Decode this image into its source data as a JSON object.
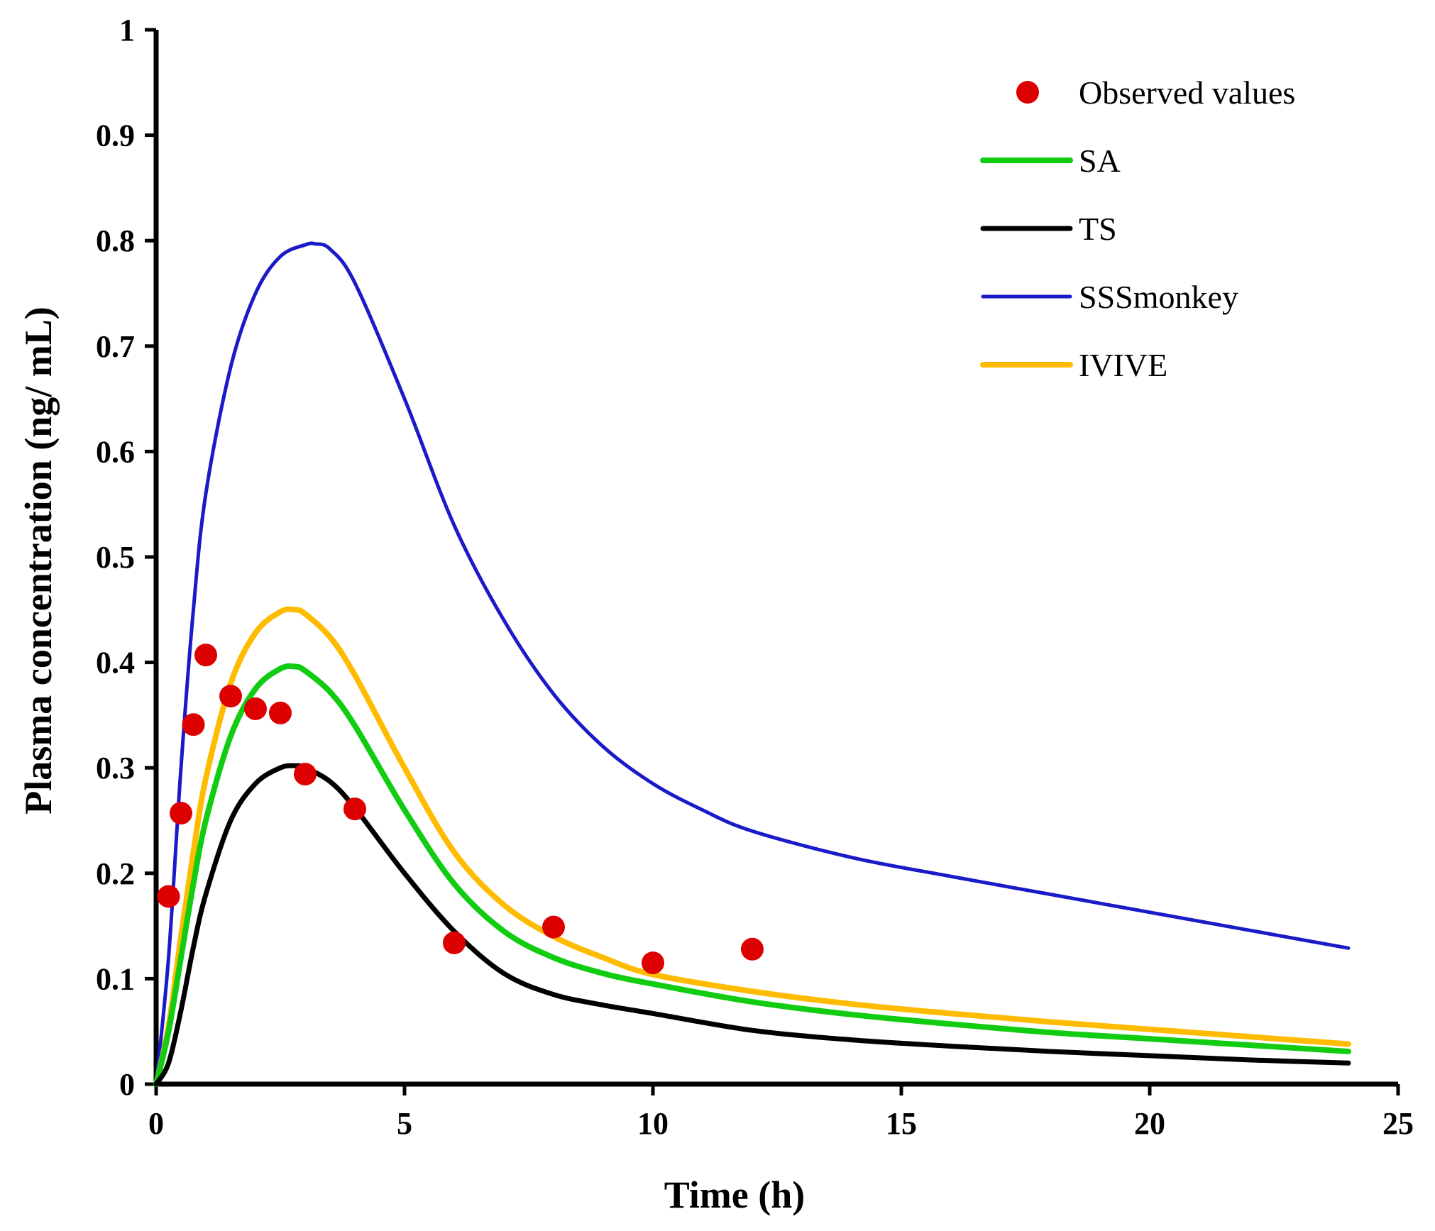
{
  "chart_data": {
    "type": "line",
    "title": "",
    "xlabel": "Time (h)",
    "ylabel": "Plasma concentration (ng/ mL)",
    "xlim": [
      0,
      25
    ],
    "ylim": [
      0,
      1
    ],
    "xticks": [
      0,
      5,
      10,
      15,
      20,
      25
    ],
    "yticks": [
      0,
      0.1,
      0.2,
      0.3,
      0.4,
      0.5,
      0.6,
      0.7,
      0.8,
      0.9,
      1
    ],
    "xtick_labels": [
      "0",
      "5",
      "10",
      "15",
      "20",
      "25"
    ],
    "ytick_labels": [
      "0",
      "0.1",
      "0.2",
      "0.3",
      "0.4",
      "0.5",
      "0.6",
      "0.7",
      "0.8",
      "0.9",
      "1"
    ],
    "grid": false,
    "legend_position": "top-right",
    "observed": {
      "name": "Observed values",
      "color": "#dd0000",
      "x": [
        0.25,
        0.5,
        0.75,
        1,
        1.5,
        2,
        2.5,
        3,
        4,
        6,
        8,
        10,
        12
      ],
      "y": [
        0.178,
        0.257,
        0.341,
        0.407,
        0.368,
        0.356,
        0.352,
        0.294,
        0.261,
        0.134,
        0.149,
        0.115,
        0.128
      ]
    },
    "series": [
      {
        "name": "SA",
        "color": "#11cc11",
        "x": [
          0,
          0.25,
          0.5,
          0.75,
          1,
          1.5,
          2,
          2.5,
          2.8,
          3,
          3.5,
          4,
          5,
          6,
          7,
          8,
          9,
          10,
          12,
          14,
          16,
          18,
          20,
          22,
          24
        ],
        "y": [
          0,
          0.05,
          0.12,
          0.19,
          0.25,
          0.33,
          0.375,
          0.394,
          0.396,
          0.392,
          0.372,
          0.34,
          0.26,
          0.19,
          0.145,
          0.12,
          0.105,
          0.095,
          0.078,
          0.066,
          0.057,
          0.049,
          0.043,
          0.037,
          0.031
        ]
      },
      {
        "name": "TS",
        "color": "#000000",
        "x": [
          0,
          0.25,
          0.5,
          0.75,
          1,
          1.5,
          2,
          2.5,
          2.8,
          3,
          3.5,
          4,
          5,
          6,
          7,
          8,
          9,
          10,
          12,
          14,
          16,
          18,
          20,
          22,
          24
        ],
        "y": [
          0,
          0.02,
          0.07,
          0.13,
          0.18,
          0.25,
          0.285,
          0.3,
          0.302,
          0.3,
          0.287,
          0.262,
          0.2,
          0.145,
          0.105,
          0.085,
          0.075,
          0.067,
          0.051,
          0.042,
          0.036,
          0.031,
          0.027,
          0.023,
          0.02
        ]
      },
      {
        "name": "SSSmonkey",
        "color": "#1a1ac8",
        "x": [
          0,
          0.25,
          0.5,
          0.75,
          1,
          1.5,
          2,
          2.5,
          3,
          3.2,
          3.5,
          4,
          5,
          6,
          7,
          8,
          9,
          10,
          11,
          12,
          14,
          16,
          18,
          20,
          22,
          24
        ],
        "y": [
          0,
          0.12,
          0.3,
          0.45,
          0.56,
          0.68,
          0.75,
          0.785,
          0.796,
          0.797,
          0.792,
          0.76,
          0.65,
          0.53,
          0.44,
          0.37,
          0.32,
          0.285,
          0.26,
          0.24,
          0.215,
          0.197,
          0.18,
          0.163,
          0.146,
          0.129
        ]
      },
      {
        "name": "IVIVE",
        "color": "#ffbb00",
        "x": [
          0,
          0.25,
          0.5,
          0.75,
          1,
          1.5,
          2,
          2.5,
          2.8,
          3,
          3.5,
          4,
          5,
          6,
          7,
          8,
          9,
          10,
          12,
          14,
          16,
          18,
          20,
          22,
          24
        ],
        "y": [
          0,
          0.055,
          0.14,
          0.22,
          0.29,
          0.38,
          0.428,
          0.448,
          0.45,
          0.446,
          0.424,
          0.388,
          0.3,
          0.22,
          0.17,
          0.14,
          0.12,
          0.104,
          0.088,
          0.076,
          0.067,
          0.059,
          0.052,
          0.045,
          0.038
        ]
      }
    ]
  }
}
